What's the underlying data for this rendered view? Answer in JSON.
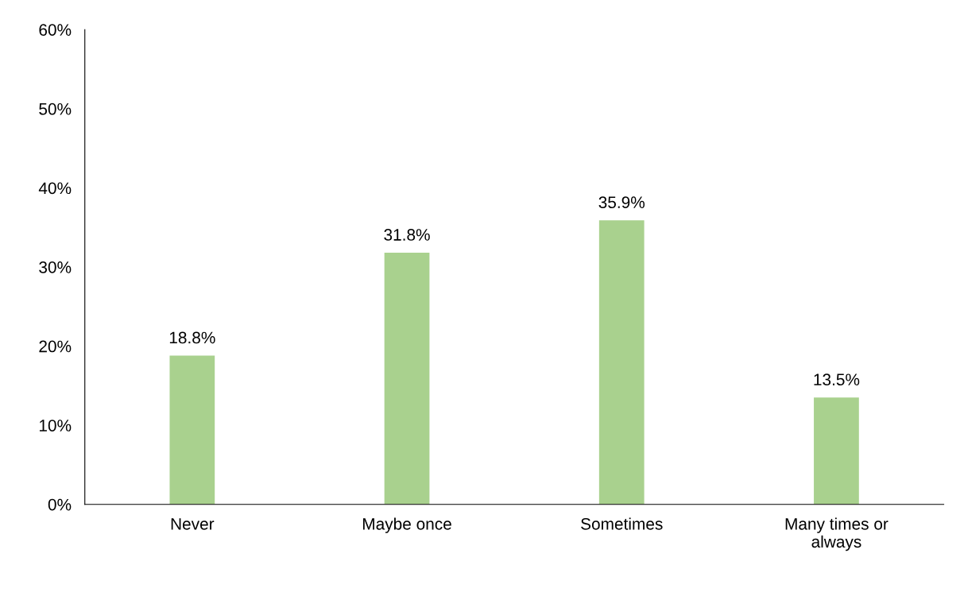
{
  "chart_data": {
    "type": "bar",
    "categories": [
      "Never",
      "Maybe once",
      "Sometimes",
      "Many times or\nalways"
    ],
    "values": [
      18.8,
      31.8,
      35.9,
      13.5
    ],
    "value_labels": [
      "18.8%",
      "31.8%",
      "35.9%",
      "13.5%"
    ],
    "color": "#a9d18e",
    "ylim": [
      0,
      60
    ],
    "yticks": [
      {
        "value": 0,
        "label": "0%"
      },
      {
        "value": 10,
        "label": "10%"
      },
      {
        "value": 20,
        "label": "20%"
      },
      {
        "value": 30,
        "label": "30%"
      },
      {
        "value": 40,
        "label": "40%"
      },
      {
        "value": 50,
        "label": "50%"
      },
      {
        "value": 60,
        "label": "60%"
      }
    ],
    "grid": false,
    "legend": false
  }
}
